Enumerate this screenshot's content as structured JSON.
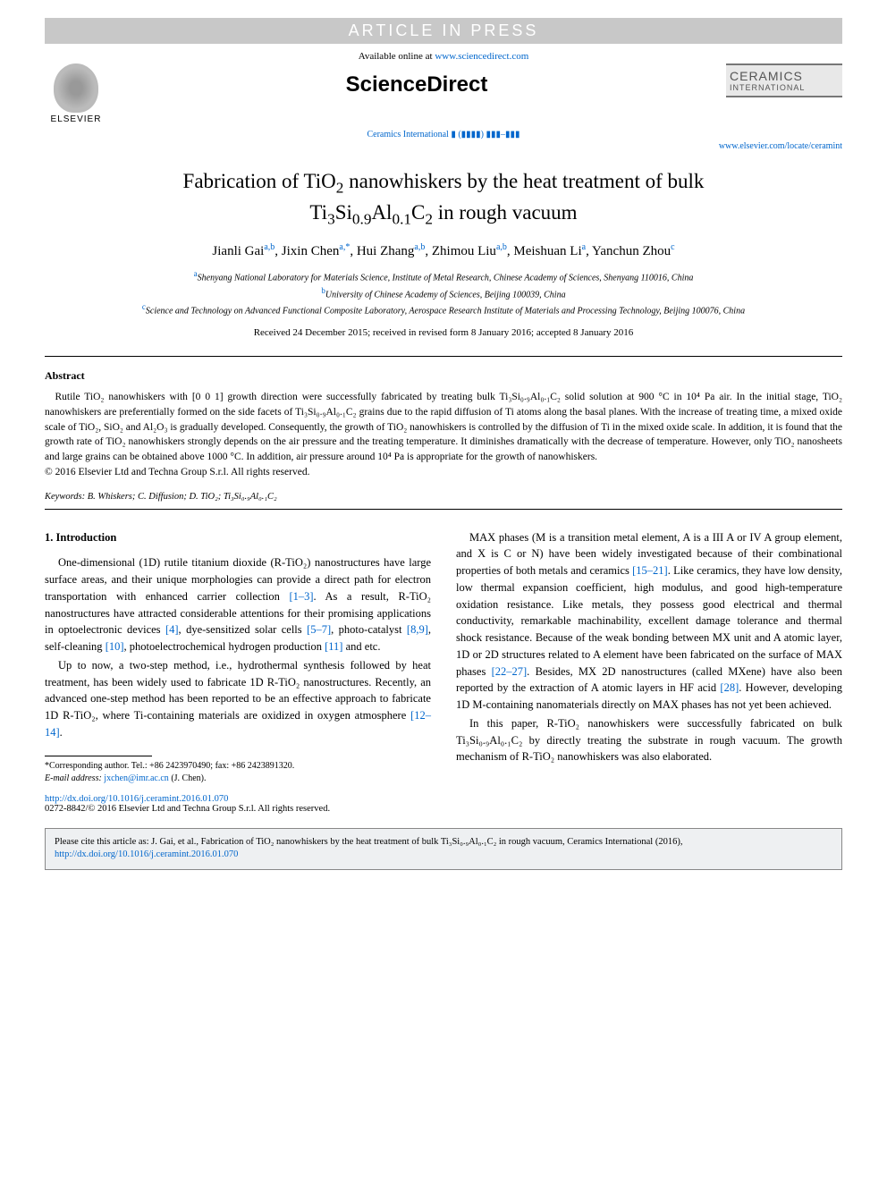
{
  "banner": {
    "article_in_press": "ARTICLE IN PRESS",
    "available_online_prefix": "Available online at ",
    "available_online_url": "www.sciencedirect.com",
    "sciencedirect": "ScienceDirect",
    "journal_ref": "Ceramics International ▮ (▮▮▮▮) ▮▮▮–▮▮▮",
    "journal_url": "www.elsevier.com/locate/ceramint",
    "elsevier_label": "ELSEVIER",
    "ceramics_line1": "CERAMICS",
    "ceramics_line2": "INTERNATIONAL"
  },
  "title": {
    "line1_pre": "Fabrication of TiO",
    "line1_sub1": "2",
    "line1_mid": " nanowhiskers by the heat treatment of bulk",
    "line2_pre": "Ti",
    "line2_s1": "3",
    "line2_m1": "Si",
    "line2_s2": "0.9",
    "line2_m2": "Al",
    "line2_s3": "0.1",
    "line2_m3": "C",
    "line2_s4": "2",
    "line2_end": " in rough vacuum"
  },
  "authors": [
    {
      "name": "Jianli Gai",
      "aff": "a,b"
    },
    {
      "name": "Jixin Chen",
      "aff": "a,*"
    },
    {
      "name": "Hui Zhang",
      "aff": "a,b"
    },
    {
      "name": "Zhimou Liu",
      "aff": "a,b"
    },
    {
      "name": "Meishuan Li",
      "aff": "a"
    },
    {
      "name": "Yanchun Zhou",
      "aff": "c"
    }
  ],
  "affiliations": {
    "a": "Shenyang National Laboratory for Materials Science, Institute of Metal Research, Chinese Academy of Sciences, Shenyang 110016, China",
    "b": "University of Chinese Academy of Sciences, Beijing 100039, China",
    "c": "Science and Technology on Advanced Functional Composite Laboratory, Aerospace Research Institute of Materials and Processing Technology, Beijing 100076, China"
  },
  "dates": "Received 24 December 2015; received in revised form 8 January 2016; accepted 8 January 2016",
  "abstract": {
    "heading": "Abstract",
    "body": "Rutile TiO₂ nanowhiskers with [0 0 1] growth direction were successfully fabricated by treating bulk Ti₃Si₀.₉Al₀.₁C₂ solid solution at 900 °C in 10⁴ Pa air. In the initial stage, TiO₂ nanowhiskers are preferentially formed on the side facets of Ti₃Si₀.₉Al₀.₁C₂ grains due to the rapid diffusion of Ti atoms along the basal planes. With the increase of treating time, a mixed oxide scale of TiO₂, SiO₂ and Al₂O₃ is gradually developed. Consequently, the growth of TiO₂ nanowhiskers is controlled by the diffusion of Ti in the mixed oxide scale. In addition, it is found that the growth rate of TiO₂ nanowhiskers strongly depends on the air pressure and the treating temperature. It diminishes dramatically with the decrease of temperature. However, only TiO₂ nanosheets and large grains can be obtained above 1000 °C. In addition, air pressure around 10⁴ Pa is appropriate for the growth of nanowhiskers.",
    "copyright": "© 2016 Elsevier Ltd and Techna Group S.r.l. All rights reserved."
  },
  "keywords": {
    "label": "Keywords:",
    "text": " B. Whiskers; C. Diffusion; D. TiO₂; Ti₃Si₀.₉Al₀.₁C₂"
  },
  "intro": {
    "heading": "1.  Introduction",
    "p1_a": "One-dimensional (1D) rutile titanium dioxide (R-TiO₂) nanostructures have large surface areas, and their unique morphologies can provide a direct path for electron transportation with enhanced carrier collection ",
    "p1_ref1": "[1–3]",
    "p1_b": ". As a result, R-TiO₂ nanostructures have attracted considerable attentions for their promising applications in optoelectronic devices ",
    "p1_ref2": "[4]",
    "p1_c": ", dye-sensitized solar cells ",
    "p1_ref3": "[5–7]",
    "p1_d": ", photo-catalyst ",
    "p1_ref4": "[8,9]",
    "p1_e": ", self-cleaning ",
    "p1_ref5": "[10]",
    "p1_f": ", photoelectrochemical hydrogen production ",
    "p1_ref6": "[11]",
    "p1_g": " and etc.",
    "p2_a": "Up to now, a two-step method, i.e., hydrothermal synthesis followed by heat treatment, has been widely used to fabricate 1D R-TiO₂ nanostructures. Recently, an advanced one-step method has been reported to be an effective approach to fabricate 1D R-TiO₂, where Ti-containing materials are oxidized in oxygen atmosphere ",
    "p2_ref1": "[12–14]",
    "p2_b": ".",
    "p3_a": "MAX phases (M is a transition metal element, A is a III A or IV A group element, and X is C or N) have been widely investigated because of their combinational properties of both metals and ceramics ",
    "p3_ref1": "[15–21]",
    "p3_b": ". Like ceramics, they have low density, low thermal expansion coefficient, high modulus, and good high-temperature oxidation resistance. Like metals, they possess good electrical and thermal conductivity, remarkable machinability, excellent damage tolerance and thermal shock resistance. Because of the weak bonding between MX unit and A atomic layer, 1D or 2D structures related to A element have been fabricated on the surface of MAX phases ",
    "p3_ref2": "[22–27]",
    "p3_c": ". Besides, MX 2D nanostructures (called MXene) have also been reported by the extraction of A atomic layers in HF acid ",
    "p3_ref3": "[28]",
    "p3_d": ". However, developing 1D M-containing nanomaterials directly on MAX phases has not yet been achieved.",
    "p4": "In this paper, R-TiO₂ nanowhiskers were successfully fabricated on bulk Ti₃Si₀.₉Al₀.₁C₂ by directly treating the substrate in rough vacuum. The growth mechanism of R-TiO₂ nanowhiskers was also elaborated."
  },
  "footnote": {
    "corr": "*Corresponding author. Tel.: +86 2423970490; fax: +86 2423891320.",
    "email_label": "E-mail address: ",
    "email": "jxchen@imr.ac.cn",
    "email_paren": " (J. Chen)."
  },
  "doi": {
    "url": "http://dx.doi.org/10.1016/j.ceramint.2016.01.070",
    "issn_line": "0272-8842/© 2016 Elsevier Ltd and Techna Group S.r.l. All rights reserved."
  },
  "citebox": {
    "text_a": "Please cite this article as: J. Gai, et al., Fabrication of TiO₂ nanowhiskers by the heat treatment of bulk Ti₃Si₀.₉Al₀.₁C₂ in rough vacuum, Ceramics International (2016), ",
    "url": "http://dx.doi.org/10.1016/j.ceramint.2016.01.070"
  },
  "colors": {
    "link": "#0066cc",
    "banner_bg": "#c8c8c8",
    "citebox_bg": "#eef0f2"
  }
}
